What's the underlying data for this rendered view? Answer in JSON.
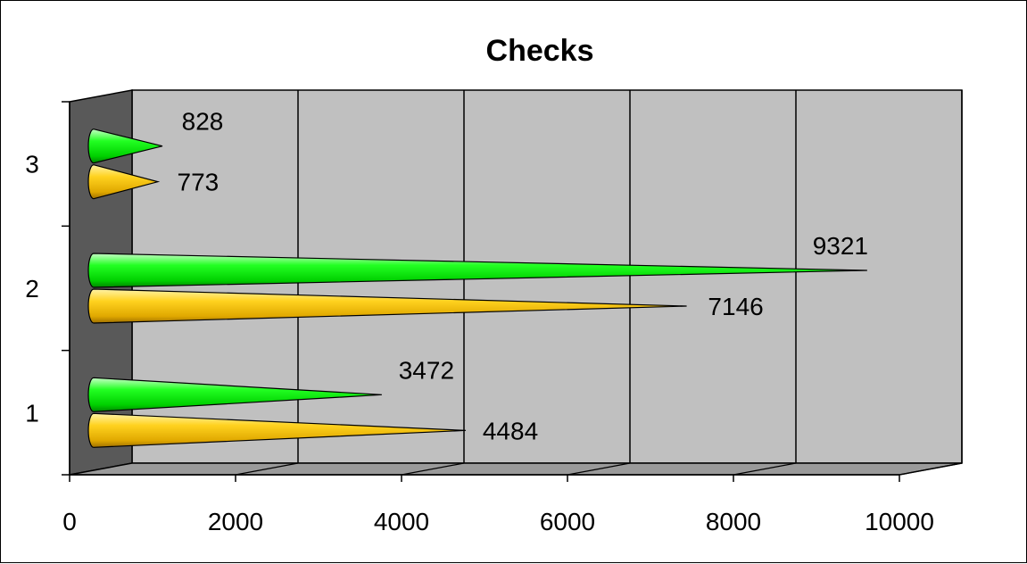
{
  "chart_data": {
    "type": "bar",
    "subtype": "horizontal-3d-cone",
    "title": "Checks",
    "xlabel": "",
    "ylabel": "",
    "categories": [
      "1",
      "2",
      "3"
    ],
    "series": [
      {
        "color": "#ffc000",
        "values": [
          4484,
          7146,
          773
        ]
      },
      {
        "color": "#00ff00",
        "values": [
          3472,
          9321,
          828
        ]
      }
    ],
    "data_labels": [
      [
        "4484",
        "7146",
        "773"
      ],
      [
        "3472",
        "9321",
        "828"
      ]
    ],
    "xlim": [
      0,
      10000
    ],
    "x_ticks": [
      "0",
      "2000",
      "4000",
      "6000",
      "8000",
      "10000"
    ],
    "grid": true,
    "legend": "none",
    "wall_color": "#c0c0c0",
    "side_wall_color": "#595959"
  }
}
